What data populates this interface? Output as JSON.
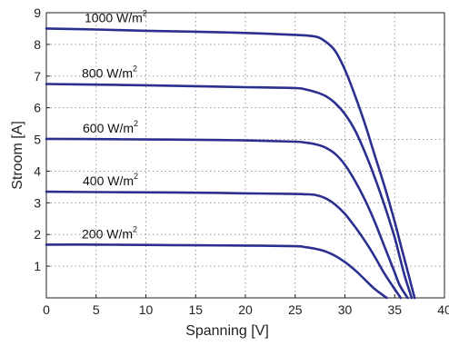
{
  "chart_data": {
    "type": "line",
    "xlabel": "Spanning [V]",
    "ylabel": "Stroom [A]",
    "xlim": [
      0,
      40
    ],
    "ylim": [
      0,
      9
    ],
    "xticks": [
      0,
      5,
      10,
      15,
      20,
      25,
      30,
      35,
      40
    ],
    "yticks": [
      1,
      2,
      3,
      4,
      5,
      6,
      7,
      8,
      9
    ],
    "grid": true,
    "line_color": "#2b2f8f",
    "series": [
      {
        "name": "1000 W/m2",
        "label_main": "1000 W/m",
        "label_sup": "2",
        "x": [
          0,
          5,
          10,
          15,
          20,
          25,
          27,
          28,
          29,
          30,
          31,
          32,
          33,
          34,
          35,
          35.5,
          36,
          36.5,
          37
        ],
        "y": [
          8.5,
          8.47,
          8.43,
          8.4,
          8.36,
          8.3,
          8.25,
          8.1,
          7.8,
          7.2,
          6.4,
          5.5,
          4.5,
          3.5,
          2.4,
          1.8,
          1.2,
          0.6,
          0
        ]
      },
      {
        "name": "800 W/m2",
        "label_main": "800 W/m",
        "label_sup": "2",
        "x": [
          0,
          5,
          10,
          15,
          20,
          25,
          26,
          27,
          28,
          29,
          30,
          31,
          32,
          33,
          34,
          35,
          35.5,
          36,
          36.7
        ],
        "y": [
          6.75,
          6.73,
          6.71,
          6.68,
          6.65,
          6.62,
          6.58,
          6.5,
          6.38,
          6.15,
          5.8,
          5.3,
          4.6,
          3.8,
          2.9,
          1.9,
          1.3,
          0.7,
          0
        ]
      },
      {
        "name": "600 W/m2",
        "label_main": "600 W/m",
        "label_sup": "2",
        "x": [
          0,
          5,
          10,
          15,
          20,
          25,
          26,
          27,
          28,
          29,
          30,
          31,
          32,
          33,
          34,
          35,
          35.5,
          36.3
        ],
        "y": [
          5.02,
          5.01,
          5.0,
          4.99,
          4.97,
          4.93,
          4.9,
          4.85,
          4.75,
          4.55,
          4.2,
          3.7,
          3.1,
          2.4,
          1.6,
          0.8,
          0.4,
          0
        ]
      },
      {
        "name": "400 W/m2",
        "label_main": "400 W/m",
        "label_sup": "2",
        "x": [
          0,
          5,
          10,
          15,
          20,
          25,
          26,
          27,
          28,
          29,
          30,
          31,
          32,
          33,
          34,
          35.6
        ],
        "y": [
          3.35,
          3.34,
          3.33,
          3.32,
          3.3,
          3.28,
          3.27,
          3.25,
          3.15,
          2.95,
          2.65,
          2.25,
          1.8,
          1.3,
          0.75,
          0
        ]
      },
      {
        "name": "200 W/m2",
        "label_main": "200 W/m",
        "label_sup": "2",
        "x": [
          0,
          5,
          10,
          15,
          20,
          25,
          26,
          27,
          28,
          29,
          30,
          31,
          32,
          33,
          34.2
        ],
        "y": [
          1.68,
          1.68,
          1.67,
          1.66,
          1.65,
          1.63,
          1.6,
          1.55,
          1.47,
          1.33,
          1.13,
          0.88,
          0.58,
          0.28,
          0
        ]
      }
    ]
  }
}
